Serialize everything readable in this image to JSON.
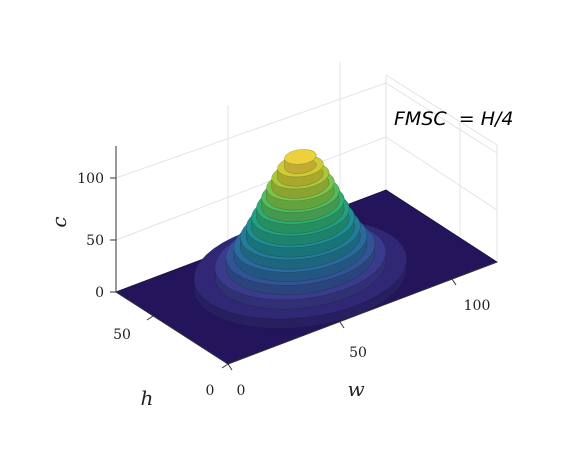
{
  "chart_data": {
    "type": "surface",
    "annotation": "FMSC  = H/4",
    "xlabel": "w",
    "ylabel": "h",
    "zlabel": "c",
    "x_ticks": [
      "0",
      "50",
      "100"
    ],
    "y_ticks": [
      "0",
      "50"
    ],
    "z_ticks": [
      "0",
      "50",
      "100"
    ],
    "xlim": [
      0,
      125
    ],
    "ylim": [
      0,
      75
    ],
    "zlim": [
      0,
      120
    ],
    "grid": true,
    "colormap": "viridis",
    "floor_color": "#24145c",
    "surface": {
      "shape": "gaussian-like peak, terraced (stepped)",
      "peak_center": [
        60,
        38
      ],
      "peak_height": 115,
      "radius_at_base": 42,
      "levels": 13
    }
  }
}
